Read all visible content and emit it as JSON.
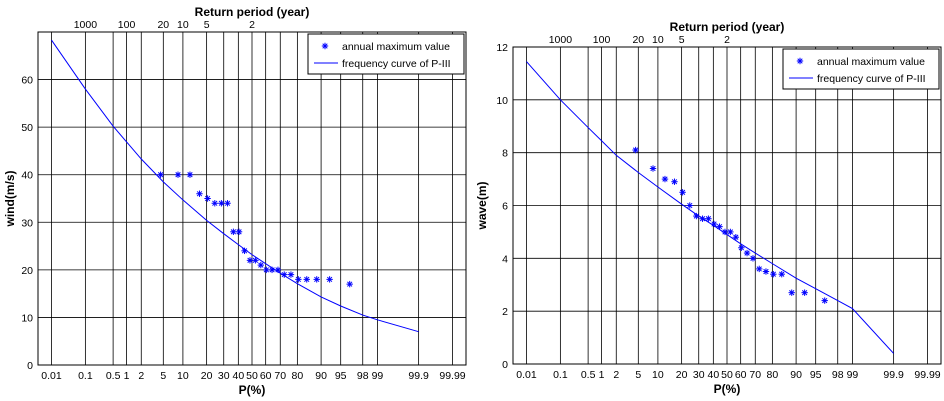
{
  "chart_data": [
    {
      "type": "scatter",
      "title": "Return period (year)",
      "xlabel": "P(%)",
      "ylabel": "wind(m/s)",
      "x_scale": "normal-probability",
      "x_ticks": [
        0.01,
        0.1,
        0.5,
        1,
        2,
        5,
        10,
        20,
        30,
        40,
        50,
        60,
        70,
        80,
        90,
        95,
        98,
        99,
        99.9,
        99.99
      ],
      "x_tick_labels": [
        "0.01",
        "0.1",
        "0.5",
        "1",
        "2",
        "5",
        "10",
        "20",
        "30",
        "40",
        "50",
        "60",
        "70",
        "80",
        "90",
        "95",
        "98",
        "99",
        "99.9",
        "99.99"
      ],
      "return_period_ticks": [
        1000,
        100,
        20,
        10,
        5,
        2
      ],
      "return_period_labels": [
        "1000",
        "100",
        "20",
        "10",
        "5",
        "2"
      ],
      "ylim": [
        0,
        70
      ],
      "y_ticks": [
        0,
        10,
        20,
        30,
        40,
        50,
        60
      ],
      "y_tick_labels": [
        "0",
        "10",
        "20",
        "30",
        "40",
        "50",
        "60"
      ],
      "grid": true,
      "legend_position": "top-right",
      "series": [
        {
          "name": "annual maximum value",
          "kind": "markers",
          "color": "#0000ff",
          "x": [
            4.5,
            8.5,
            12.5,
            16.5,
            20.5,
            24.5,
            28.5,
            32.5,
            36.5,
            40.5,
            44.5,
            48.5,
            52.5,
            56.5,
            60.5,
            64.5,
            68.5,
            72.5,
            76.5,
            80.5,
            84.5,
            88.5,
            92.5,
            96.5
          ],
          "y": [
            40,
            40,
            40,
            36,
            35,
            34,
            34,
            34,
            28,
            28,
            24,
            22,
            22,
            21,
            20,
            20,
            20,
            19,
            19,
            18,
            18,
            18,
            18,
            17
          ]
        },
        {
          "name": "frequency curve of P-III",
          "kind": "line",
          "color": "#0000ff",
          "x": [
            0.01,
            0.1,
            0.5,
            1,
            2,
            5,
            10,
            20,
            30,
            40,
            50,
            60,
            70,
            80,
            90,
            95,
            98,
            99,
            99.9
          ],
          "y": [
            68.3,
            58.0,
            50.2,
            46.9,
            43.3,
            38.5,
            34.7,
            30.4,
            27.6,
            25.3,
            23.2,
            21.3,
            19.3,
            17.1,
            14.3,
            12.4,
            10.5,
            9.5,
            7.0
          ]
        }
      ]
    },
    {
      "type": "scatter",
      "title": "Return period (year)",
      "xlabel": "P(%)",
      "ylabel": "wave(m)",
      "x_scale": "normal-probability",
      "x_ticks": [
        0.01,
        0.1,
        0.5,
        1,
        2,
        5,
        10,
        20,
        30,
        40,
        50,
        60,
        70,
        80,
        90,
        95,
        98,
        99,
        99.9,
        99.99
      ],
      "x_tick_labels": [
        "0.01",
        "0.1",
        "0.5",
        "1",
        "2",
        "5",
        "10",
        "20",
        "30",
        "40",
        "50",
        "60",
        "70",
        "80",
        "90",
        "95",
        "98",
        "99",
        "99.9",
        "99.99"
      ],
      "return_period_ticks": [
        1000,
        100,
        20,
        10,
        5,
        2
      ],
      "return_period_labels": [
        "1000",
        "100",
        "20",
        "10",
        "5",
        "2"
      ],
      "ylim": [
        0,
        12
      ],
      "y_ticks": [
        0,
        2,
        4,
        6,
        8,
        10,
        12
      ],
      "y_tick_labels": [
        "0",
        "2",
        "4",
        "6",
        "8",
        "10",
        "12"
      ],
      "grid": true,
      "legend_position": "top-right",
      "series": [
        {
          "name": "annual maximum value",
          "kind": "markers",
          "color": "#0000ff",
          "x": [
            4.5,
            8.5,
            12.5,
            16.5,
            20.5,
            24.5,
            28.5,
            32.5,
            36.5,
            40.5,
            44.5,
            48.5,
            52.5,
            56.5,
            60.5,
            64.5,
            68.5,
            72.5,
            76.5,
            80.5,
            84.5,
            88.5,
            92.5,
            96.5
          ],
          "y": [
            8.1,
            7.4,
            7.0,
            6.9,
            6.5,
            6.0,
            5.6,
            5.5,
            5.5,
            5.3,
            5.2,
            5.0,
            5.0,
            4.8,
            4.4,
            4.2,
            4.0,
            3.6,
            3.5,
            3.4,
            3.4,
            2.7,
            2.7,
            2.4
          ]
        },
        {
          "name": "frequency curve of P-III",
          "kind": "line",
          "color": "#0000ff",
          "x": [
            0.01,
            0.1,
            0.5,
            1,
            2,
            5,
            10,
            20,
            30,
            40,
            50,
            60,
            70,
            80,
            90,
            95,
            98,
            99,
            99.9
          ],
          "y": [
            11.45,
            10.0,
            8.95,
            8.45,
            7.9,
            7.25,
            6.7,
            6.05,
            5.6,
            5.25,
            4.9,
            4.55,
            4.2,
            3.8,
            3.25,
            2.85,
            2.4,
            2.1,
            0.4
          ]
        }
      ]
    }
  ]
}
